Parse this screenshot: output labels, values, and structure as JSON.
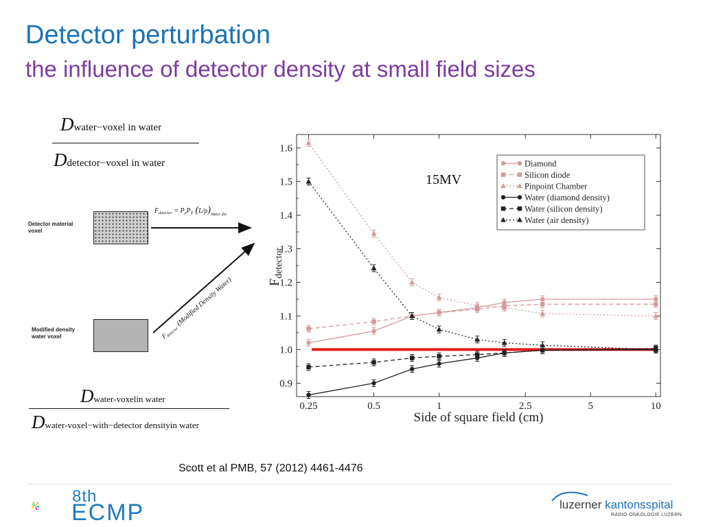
{
  "slide": {
    "title": "Detector perturbation",
    "subtitle": "the influence of detector density at small field sizes",
    "citation": "Scott et al PMB, 57 (2012) 4461-4476"
  },
  "formula_top": {
    "num_D": "D",
    "num_sub": "water−voxel in water",
    "den_D": "D",
    "den_sub": "detector−voxel in water"
  },
  "formula_bottom": {
    "num_D": "D",
    "num_sub": "water-voxelin water",
    "den_D": "D",
    "den_sub": "water-voxel−with−detector densityin water"
  },
  "diagram": {
    "label_top": [
      "Detector material",
      "voxel"
    ],
    "label_bottom": [
      "Modified density",
      "water voxel"
    ],
    "formula_upper": "F",
    "formula_upper_sub": "detector",
    "formula_upper_rhs": "= P",
    "formula_upper_tail": "Water det",
    "formula_lower_prefix": "F",
    "formula_lower_sub": "detector",
    "formula_lower_text": "(Modified Density Water)"
  },
  "chart_data": {
    "type": "line",
    "energy_label": "15MV",
    "xlabel": "Side of square field (cm)",
    "ylabel": "F",
    "ylabel_sub": "detector",
    "x_scale": "log",
    "xlim": [
      0.22,
      10.5
    ],
    "ylim": [
      0.86,
      1.64
    ],
    "x_ticks": [
      0.25,
      0.5,
      1,
      2.5,
      5,
      10
    ],
    "x_tick_labels": [
      "0.25",
      "0.5",
      "1",
      "2.5",
      "5",
      "10"
    ],
    "y_ticks": [
      0.9,
      1.0,
      1.1,
      1.2,
      1.3,
      1.4,
      1.5,
      1.6
    ],
    "y_tick_labels": [
      "0.9",
      "1.0",
      "1.1",
      "1.2",
      "1.3",
      "1.4",
      "1.5",
      "1.6"
    ],
    "x": [
      0.25,
      0.5,
      0.75,
      1,
      1.5,
      2,
      3,
      10
    ],
    "reference_line": {
      "y": 1.0,
      "color": "#e31b1b"
    },
    "legend_position": "top-right",
    "series": [
      {
        "name": "Diamond",
        "values": [
          1.02,
          1.055,
          1.1,
          1.11,
          1.125,
          1.14,
          1.15,
          1.15
        ],
        "color": "#d49a9a",
        "dash": "",
        "marker": "circle"
      },
      {
        "name": "Silicon diode",
        "values": [
          1.062,
          1.083,
          1.1,
          1.11,
          1.12,
          1.13,
          1.135,
          1.135
        ],
        "color": "#d49a9a",
        "dash": "6,4",
        "marker": "square"
      },
      {
        "name": "Pinpoint Chamber",
        "values": [
          1.615,
          1.345,
          1.2,
          1.155,
          1.13,
          1.125,
          1.107,
          1.1
        ],
        "color": "#d49a9a",
        "dash": "2,3",
        "marker": "triangle"
      },
      {
        "name": "Water (diamond density)",
        "values": [
          0.865,
          0.9,
          0.942,
          0.958,
          0.975,
          0.99,
          0.998,
          1.0
        ],
        "color": "#222222",
        "dash": "",
        "marker": "circle"
      },
      {
        "name": "Water (silicon density)",
        "values": [
          0.948,
          0.962,
          0.975,
          0.98,
          0.985,
          0.99,
          0.998,
          1.003
        ],
        "color": "#222222",
        "dash": "6,4",
        "marker": "square"
      },
      {
        "name": "Water (air density)",
        "values": [
          1.5,
          1.242,
          1.1,
          1.06,
          1.03,
          1.02,
          1.013,
          1.0
        ],
        "color": "#222222",
        "dash": "2,3",
        "marker": "triangle"
      }
    ]
  },
  "footer": {
    "conf_edition": "8th",
    "conf_name": "ECMP",
    "hospital_a": "luzerner ",
    "hospital_b": "kantonsspital",
    "hospital_sub": "RADIO-ONKOLOGIE LUZERN"
  }
}
